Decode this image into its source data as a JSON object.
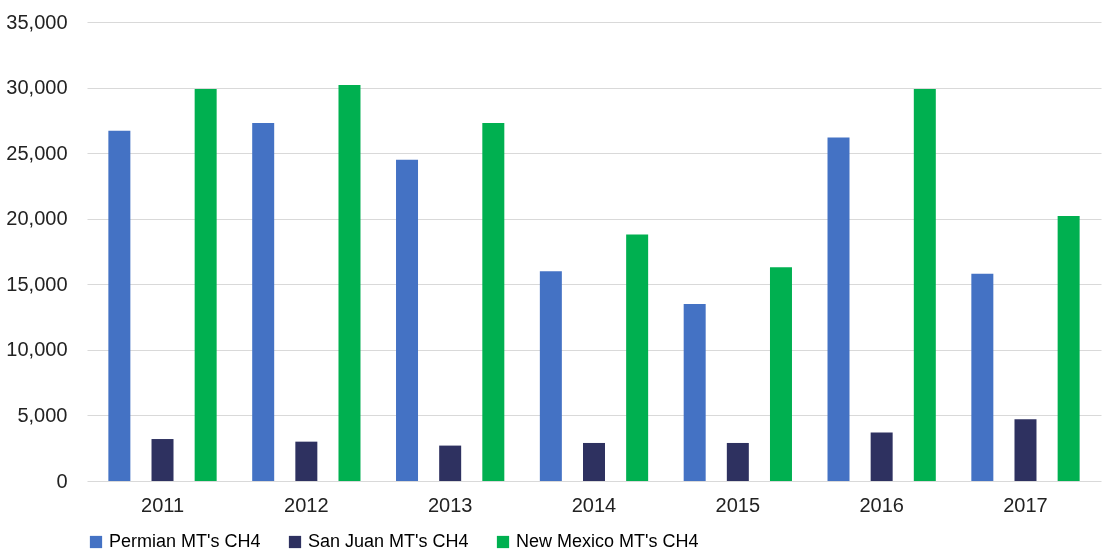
{
  "chart_data": {
    "type": "bar",
    "categories": [
      "2011",
      "2012",
      "2013",
      "2014",
      "2015",
      "2016",
      "2017"
    ],
    "series": [
      {
        "name": "Permian MT's CH4",
        "color": "#4472c4",
        "values": [
          26700,
          27300,
          24500,
          16000,
          13500,
          26200,
          15800
        ]
      },
      {
        "name": "San Juan MT's CH4",
        "color": "#2e3160",
        "values": [
          3200,
          3000,
          2700,
          2900,
          2900,
          3700,
          4700
        ]
      },
      {
        "name": "New Mexico MT's CH4",
        "color": "#00b050",
        "values": [
          29900,
          30200,
          27300,
          18800,
          16300,
          29900,
          20200
        ]
      }
    ],
    "ylim": [
      0,
      35000
    ],
    "yticks": [
      0,
      {
        "value": 5000,
        "label": "5,000"
      },
      {
        "value": 10000,
        "label": "10,000"
      },
      {
        "value": 15000,
        "label": "15,000"
      },
      {
        "value": 20000,
        "label": "20,000"
      },
      {
        "value": 25000,
        "label": "25,000"
      },
      {
        "value": 30000,
        "label": "30,000"
      },
      {
        "value": 35000,
        "label": "35,000"
      }
    ],
    "grid": "y",
    "legend": "bottom"
  }
}
